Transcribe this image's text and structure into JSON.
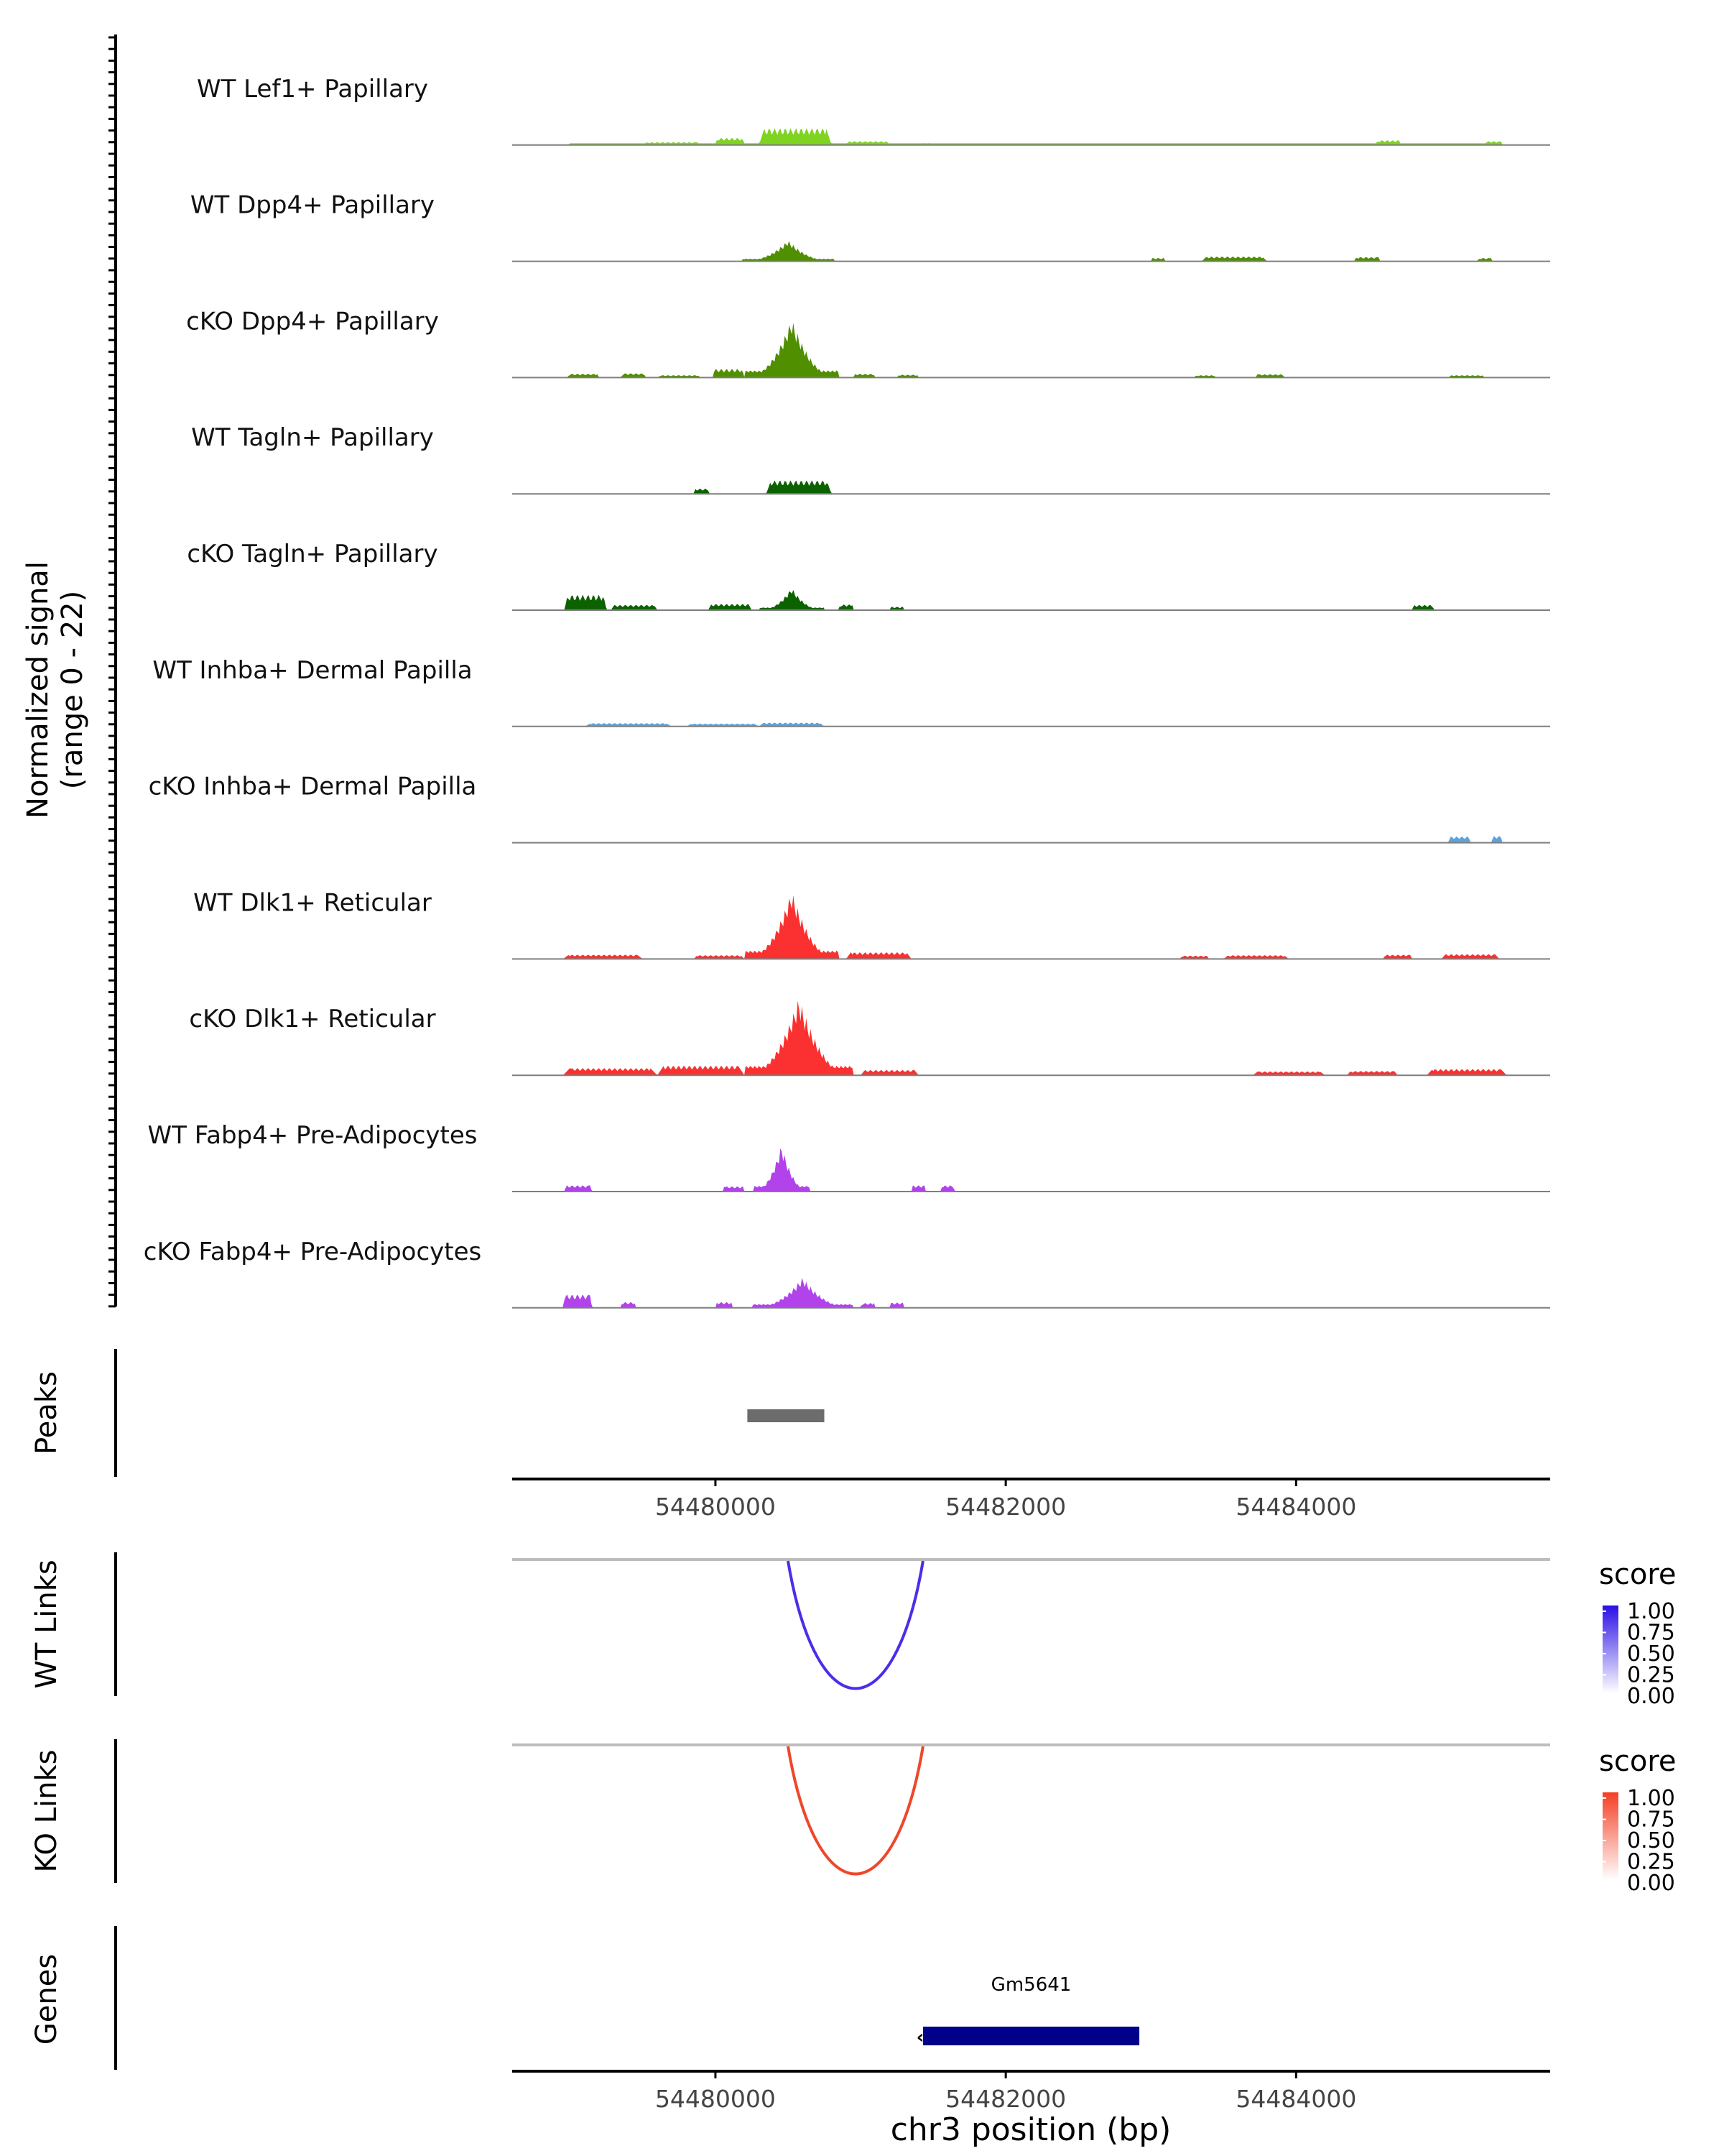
{
  "chart_data": {
    "type": "area",
    "region": "chr3:54478600-54485750",
    "xlim": [
      54478600,
      54485750
    ],
    "x_ticks": [
      54480000,
      54482000,
      54484000
    ],
    "x_tick_labels": [
      "54480000",
      "54482000",
      "54484000"
    ],
    "xlabel": "chr3 position (bp)",
    "coverage_ylabel": "Normalized signal\n(range 0 - 22)",
    "coverage_ylabel_lines": [
      "Normalized signal",
      "(range 0 - 22)"
    ],
    "coverage_range": [
      0,
      22
    ],
    "tracks": [
      {
        "name": "WT Lef1+ Papillary",
        "color": "#7fd321",
        "baseline": 3,
        "peaks": [
          [
            54479500,
            54479900,
            0.6
          ],
          [
            54480000,
            54480200,
            1.5
          ],
          [
            54480300,
            54480800,
            3.5
          ],
          [
            54480900,
            54481200,
            0.8
          ],
          [
            54481400,
            54481500,
            0.4
          ],
          [
            54484550,
            54484720,
            1.0
          ],
          [
            54485300,
            54485420,
            0.8
          ]
        ]
      },
      {
        "name": "WT Dpp4+ Papillary",
        "color": "#4f8f00",
        "baseline": 0,
        "peaks": [
          [
            54480180,
            54480820,
            4.5
          ],
          [
            54483000,
            54483100,
            0.7
          ],
          [
            54483350,
            54483800,
            1.0
          ],
          [
            54484400,
            54484580,
            0.9
          ],
          [
            54485250,
            54485350,
            0.7
          ]
        ]
      },
      {
        "name": "cKO Dpp4+ Papillary",
        "color": "#4f8f00",
        "baseline": 0,
        "peaks": [
          [
            54478980,
            54479200,
            0.8
          ],
          [
            54479350,
            54479520,
            0.9
          ],
          [
            54479600,
            54479900,
            0.5
          ],
          [
            54479980,
            54480200,
            1.8
          ],
          [
            54480200,
            54480850,
            12.5
          ],
          [
            54480950,
            54481100,
            0.8
          ],
          [
            54481250,
            54481400,
            0.6
          ],
          [
            54483300,
            54483450,
            0.5
          ],
          [
            54483720,
            54483920,
            0.7
          ],
          [
            54485050,
            54485300,
            0.5
          ]
        ]
      },
      {
        "name": "WT Tagln+ Papillary",
        "color": "#0d6200",
        "baseline": 0,
        "peaks": [
          [
            54479850,
            54479960,
            1.1
          ],
          [
            54480350,
            54480800,
            2.8
          ]
        ]
      },
      {
        "name": "cKO Tagln+ Papillary",
        "color": "#0d6200",
        "baseline": 0,
        "peaks": [
          [
            54478960,
            54479250,
            3.2
          ],
          [
            54479280,
            54479600,
            1.1
          ],
          [
            54479950,
            54480250,
            1.3
          ],
          [
            54480300,
            54480750,
            4.8
          ],
          [
            54480850,
            54480950,
            1.2
          ],
          [
            54481200,
            54481300,
            0.7
          ],
          [
            54484800,
            54484950,
            1.1
          ]
        ]
      },
      {
        "name": "WT Inhba+ Dermal Papilla",
        "color": "#5ba3dd",
        "baseline": 0,
        "peaks": [
          [
            54479100,
            54479700,
            0.7
          ],
          [
            54479800,
            54480300,
            0.6
          ],
          [
            54480300,
            54480750,
            0.8
          ]
        ]
      },
      {
        "name": "cKO Inhba+ Dermal Papilla",
        "color": "#5ba3dd",
        "baseline": 0,
        "peaks": [
          [
            54485050,
            54485200,
            1.3
          ],
          [
            54485350,
            54485420,
            1.4
          ]
        ]
      },
      {
        "name": "WT Dlk1+ Reticular",
        "color": "#fb3131",
        "baseline": 0,
        "peaks": [
          [
            54478950,
            54479500,
            0.9
          ],
          [
            54479850,
            54480200,
            0.8
          ],
          [
            54480200,
            54480850,
            14.5
          ],
          [
            54480900,
            54481350,
            1.4
          ],
          [
            54483200,
            54483400,
            0.7
          ],
          [
            54483500,
            54483950,
            0.8
          ],
          [
            54484600,
            54484800,
            0.9
          ],
          [
            54485000,
            54485400,
            1.0
          ]
        ]
      },
      {
        "name": "cKO Dlk1+ Reticular",
        "color": "#fb3131",
        "baseline": 0,
        "peaks": [
          [
            54478950,
            54479600,
            1.5
          ],
          [
            54479600,
            54480200,
            2.0
          ],
          [
            54480200,
            54480950,
            16.5
          ],
          [
            54481000,
            54481400,
            1.1
          ],
          [
            54483700,
            54484200,
            0.8
          ],
          [
            54484350,
            54484700,
            0.9
          ],
          [
            54484900,
            54485450,
            1.3
          ]
        ]
      },
      {
        "name": "WT Fabp4+ Pre-Adipocytes",
        "color": "#b243eb",
        "baseline": 0,
        "peaks": [
          [
            54478960,
            54479150,
            1.3
          ],
          [
            54480050,
            54480200,
            1.1
          ],
          [
            54480260,
            54480650,
            10.0
          ],
          [
            54481350,
            54481450,
            1.3
          ],
          [
            54481550,
            54481650,
            1.3
          ]
        ]
      },
      {
        "name": "cKO Fabp4+ Pre-Adipocytes",
        "color": "#b243eb",
        "baseline": 0,
        "peaks": [
          [
            54478950,
            54479150,
            2.8
          ],
          [
            54479350,
            54479450,
            1.2
          ],
          [
            54480000,
            54480120,
            1.2
          ],
          [
            54480250,
            54480950,
            6.5
          ],
          [
            54481000,
            54481100,
            1.0
          ],
          [
            54481200,
            54481300,
            1.1
          ]
        ]
      }
    ],
    "peaks_track": {
      "label": "Peaks",
      "peaks": [
        [
          54480220,
          54480750
        ]
      ],
      "color": "#6c6c6c"
    },
    "links_tracks": [
      {
        "label": "WT Links",
        "start": 54480500,
        "end": 54481430,
        "score": 0.8,
        "color": "#4b2ee8",
        "legend_title": "score",
        "legend_high": "#2a0fe6",
        "legend_ticks": [
          "1.00",
          "0.75",
          "0.50",
          "0.25",
          "0.00"
        ]
      },
      {
        "label": "KO Links",
        "start": 54480500,
        "end": 54481430,
        "score": 0.8,
        "color": "#f0462a",
        "legend_title": "score",
        "legend_high": "#f43f25",
        "legend_ticks": [
          "1.00",
          "0.75",
          "0.50",
          "0.25",
          "0.00"
        ]
      }
    ],
    "genes_track": {
      "label": "Genes",
      "gene": "Gm5641",
      "start": 54481430,
      "end": 54482920,
      "strand": "-",
      "color": "#00008b"
    }
  }
}
